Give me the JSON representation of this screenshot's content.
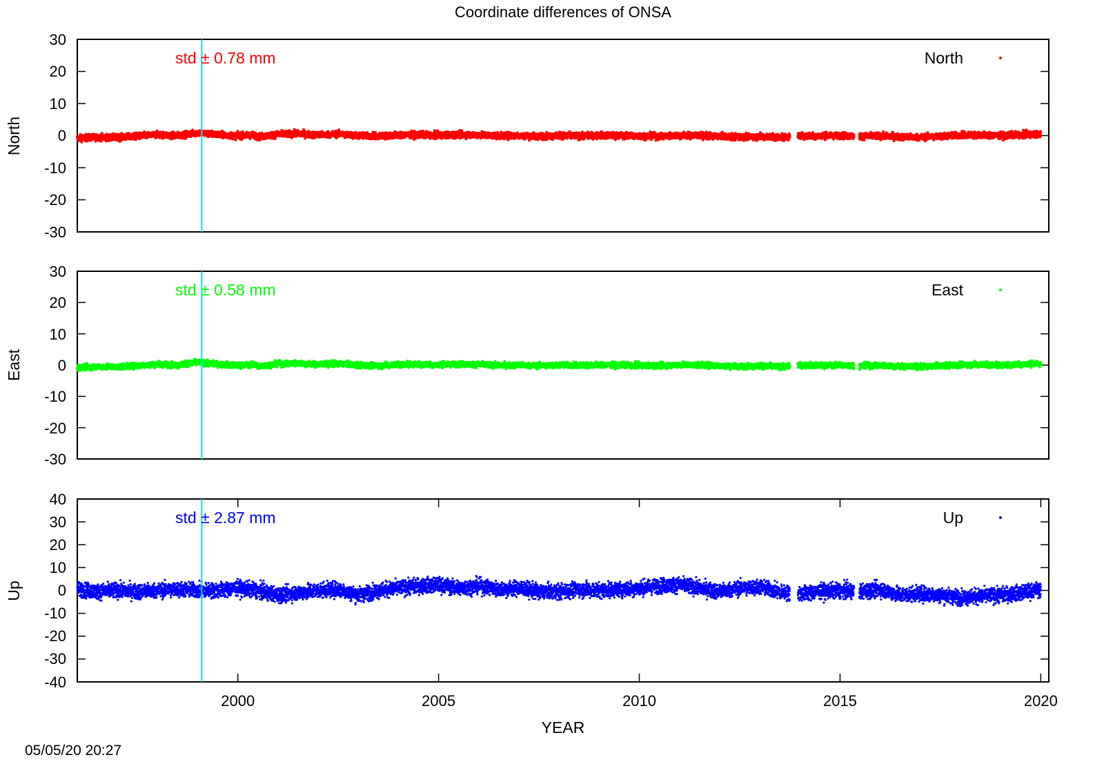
{
  "colors": {
    "north": "#ff0000",
    "east": "#00ff00",
    "up": "#0000ff",
    "marker_line": "#00e5e5",
    "frame": "#000000"
  },
  "chart_data": {
    "type": "scatter",
    "title": "Coordinate differences of ONSA",
    "xlabel": "YEAR",
    "xlim": [
      1996.0,
      2020.2
    ],
    "x_ticks": [
      2000,
      2005,
      2010,
      2015,
      2020
    ],
    "x_tick_labels": [
      "2000",
      "2005",
      "2010",
      "2015",
      "2020"
    ],
    "marker_line_x": 1999.1,
    "timestamp": "05/05/20 20:27",
    "panels": [
      {
        "id": "north",
        "ylabel": "North",
        "ylim": [
          -30,
          30
        ],
        "y_ticks": [
          30,
          20,
          10,
          0,
          -10,
          -20,
          -30
        ],
        "y_tick_labels": [
          "30",
          "20",
          "10",
          "0",
          "-10",
          "-20",
          "-30"
        ],
        "legend": "North",
        "std_label": "std ± 0.78 mm",
        "color": "#ff0000",
        "x_tick_marks": false,
        "series": {
          "name": "North",
          "x": [
            1996.0,
            1996.5,
            1997.0,
            1997.5,
            1998.0,
            1998.5,
            1999.0,
            1999.5,
            2000.0,
            2000.4,
            2000.5,
            2001.0,
            2001.5,
            2002.0,
            2002.5,
            2003.0,
            2003.5,
            2004.0,
            2004.5,
            2005.0,
            2005.5,
            2006.0,
            2006.5,
            2007.0,
            2007.5,
            2008.0,
            2008.5,
            2009.0,
            2009.5,
            2010.0,
            2010.5,
            2011.0,
            2011.5,
            2012.0,
            2012.5,
            2013.0,
            2013.6,
            2014.0,
            2014.5,
            2015.0,
            2015.5,
            2016.0,
            2016.5,
            2017.0,
            2017.5,
            2018.0,
            2018.5,
            2019.0,
            2019.5,
            2020.0
          ],
          "y": [
            -0.8,
            -0.5,
            -0.6,
            -0.2,
            0.3,
            0.0,
            0.9,
            0.3,
            -0.1,
            0.2,
            -0.4,
            0.4,
            0.6,
            0.2,
            0.5,
            0.0,
            -0.2,
            0.2,
            0.3,
            0.1,
            0.3,
            0.2,
            -0.1,
            0.0,
            -0.2,
            0.0,
            -0.1,
            0.1,
            0.0,
            -0.1,
            -0.2,
            0.1,
            0.0,
            -0.2,
            -0.4,
            -0.3,
            -0.5,
            0.0,
            -0.1,
            0.0,
            -0.2,
            -0.1,
            -0.4,
            -0.5,
            -0.2,
            0.1,
            0.2,
            0.0,
            0.3,
            0.4
          ],
          "spread": 0.9
        }
      },
      {
        "id": "east",
        "ylabel": "East",
        "ylim": [
          -30,
          30
        ],
        "y_ticks": [
          30,
          20,
          10,
          0,
          -10,
          -20,
          -30
        ],
        "y_tick_labels": [
          "30",
          "20",
          "10",
          "0",
          "-10",
          "-20",
          "-30"
        ],
        "legend": "East",
        "std_label": "std ± 0.58 mm",
        "color": "#00ff00",
        "x_tick_marks": false,
        "series": {
          "name": "East",
          "x": [
            1996.0,
            1996.5,
            1997.0,
            1997.5,
            1998.0,
            1998.5,
            1999.0,
            1999.5,
            2000.0,
            2000.4,
            2000.5,
            2001.0,
            2001.5,
            2002.0,
            2002.5,
            2003.0,
            2003.5,
            2004.0,
            2004.5,
            2005.0,
            2005.5,
            2006.0,
            2006.5,
            2007.0,
            2007.5,
            2008.0,
            2008.5,
            2009.0,
            2009.5,
            2010.0,
            2010.5,
            2011.0,
            2011.5,
            2012.0,
            2012.5,
            2013.0,
            2013.6,
            2014.0,
            2014.5,
            2015.0,
            2015.5,
            2016.0,
            2016.5,
            2017.0,
            2017.5,
            2018.0,
            2018.5,
            2019.0,
            2019.5,
            2020.0
          ],
          "y": [
            -0.8,
            -0.5,
            -0.6,
            -0.2,
            0.3,
            0.0,
            0.9,
            0.3,
            -0.1,
            0.2,
            -0.4,
            0.4,
            0.6,
            0.2,
            0.5,
            0.0,
            -0.2,
            0.2,
            0.3,
            0.1,
            0.3,
            0.2,
            -0.1,
            0.0,
            -0.2,
            0.0,
            -0.1,
            0.1,
            0.0,
            -0.1,
            -0.2,
            0.1,
            0.0,
            -0.2,
            -0.4,
            -0.3,
            -0.5,
            0.0,
            -0.1,
            0.0,
            -0.2,
            -0.1,
            -0.4,
            -0.5,
            -0.2,
            0.1,
            0.2,
            0.0,
            0.3,
            0.4
          ],
          "spread": 0.8
        }
      },
      {
        "id": "up",
        "ylabel": "Up",
        "ylim": [
          -40,
          40
        ],
        "y_ticks": [
          40,
          30,
          20,
          10,
          0,
          -10,
          -20,
          -30,
          -40
        ],
        "y_tick_labels": [
          "40",
          "30",
          "20",
          "10",
          "0",
          "-10",
          "-20",
          "-30",
          "-40"
        ],
        "legend": "Up",
        "std_label": "std ± 2.87 mm",
        "color": "#0000ff",
        "x_tick_marks": true,
        "series": {
          "name": "Up",
          "x": [
            1996.0,
            1996.5,
            1997.0,
            1997.5,
            1998.0,
            1998.5,
            1999.0,
            1999.5,
            2000.0,
            2000.5,
            2001.0,
            2001.5,
            2002.0,
            2002.5,
            2003.0,
            2003.5,
            2004.0,
            2004.5,
            2005.0,
            2005.5,
            2006.0,
            2006.5,
            2007.0,
            2007.5,
            2008.0,
            2008.5,
            2009.0,
            2009.5,
            2010.0,
            2010.5,
            2011.0,
            2011.5,
            2012.0,
            2012.5,
            2013.0,
            2013.6,
            2014.0,
            2014.5,
            2015.0,
            2015.5,
            2016.0,
            2016.5,
            2017.0,
            2017.5,
            2018.0,
            2018.5,
            2019.0,
            2019.5,
            2020.0
          ],
          "y": [
            0.5,
            -0.5,
            0.0,
            -0.5,
            0.0,
            0.5,
            0.0,
            0.0,
            1.0,
            0.0,
            -2.0,
            -1.0,
            0.0,
            0.5,
            -2.0,
            0.0,
            1.0,
            2.0,
            2.5,
            1.0,
            2.0,
            0.5,
            1.0,
            -0.5,
            -0.5,
            0.5,
            0.0,
            0.5,
            1.0,
            2.0,
            2.5,
            1.0,
            -0.5,
            1.0,
            1.5,
            -1.0,
            -1.5,
            -0.5,
            0.0,
            -0.5,
            0.5,
            -2.0,
            -1.5,
            -2.0,
            -3.0,
            -2.5,
            -2.0,
            -1.0,
            0.5
          ],
          "spread": 3.0
        }
      }
    ]
  }
}
